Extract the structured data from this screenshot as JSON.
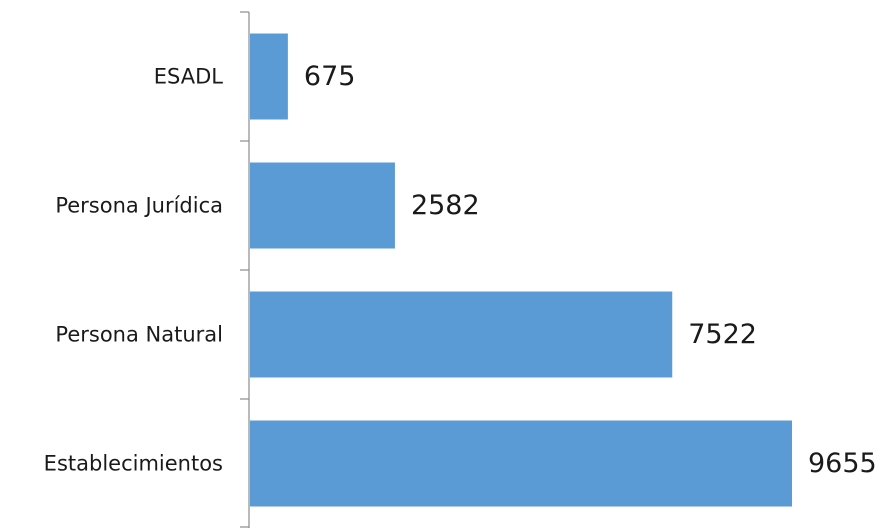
{
  "chart_data": {
    "type": "bar",
    "orientation": "horizontal",
    "categories": [
      "ESADL",
      "Persona Jurídica",
      "Persona Natural",
      "Establecimientos"
    ],
    "values": [
      675,
      2582,
      7522,
      9655
    ],
    "data_labels": [
      "675",
      "2582",
      "7522",
      "9655"
    ],
    "title": "",
    "xlabel": "",
    "ylabel": "",
    "xlim": [
      0,
      9655
    ],
    "grid": false,
    "legend": "none",
    "bar_color": "#5b9bd5",
    "axis_color": "#8c8c8c"
  }
}
